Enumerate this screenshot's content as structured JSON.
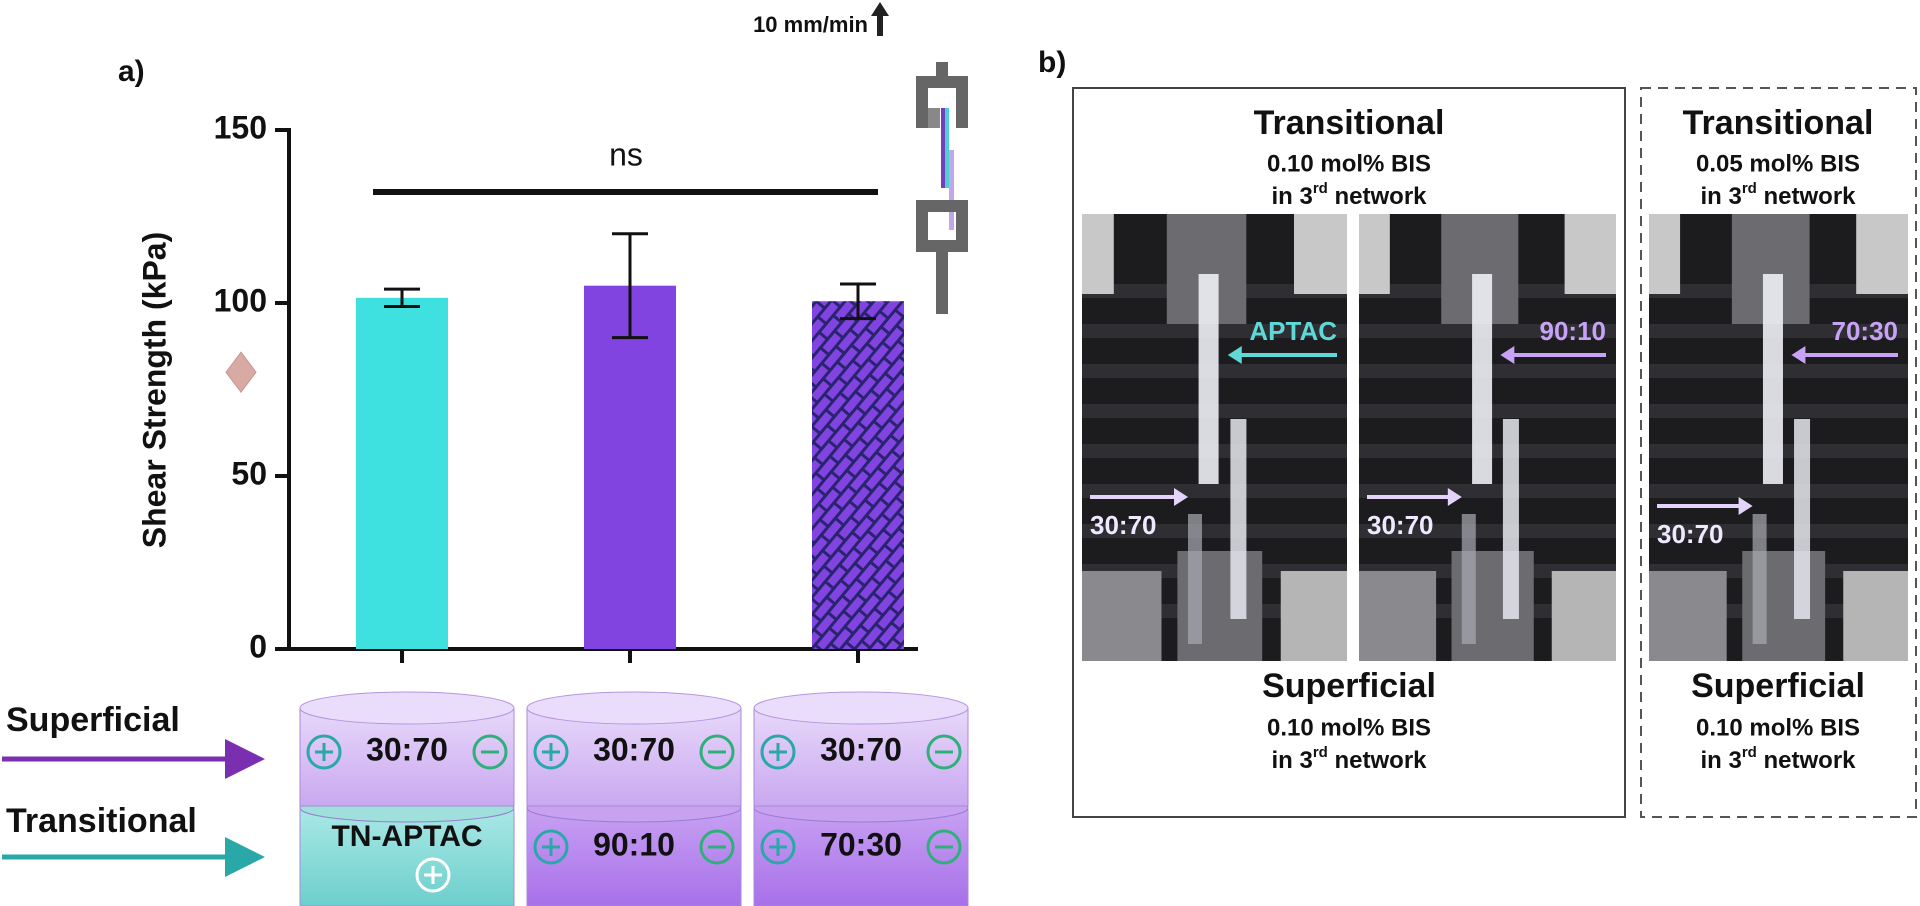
{
  "chart_data": {
    "type": "bar",
    "panel_label": "a)",
    "y_label": "Shear Strength (kPa)",
    "categories": [
      null,
      null,
      null
    ],
    "series": [
      {
        "values": [
          101.5,
          105,
          100.5
        ],
        "errors": [
          2.5,
          15,
          5
        ],
        "colors": [
          "#3ee0e0",
          "#8144e0",
          "#8144e0"
        ],
        "hatch": [
          false,
          false,
          true
        ]
      }
    ],
    "ylim": [
      0,
      150
    ],
    "yticks": [
      0,
      50,
      100,
      150
    ],
    "reference_value": 80,
    "annotation": "ns",
    "inset_label": "10 mm/min",
    "layer_labels": [
      "Superficial",
      "Transitional"
    ],
    "cylinders": [
      {
        "top": "30:70",
        "bottom": "TN-APTAC"
      },
      {
        "top": "30:70",
        "bottom": "90:10"
      },
      {
        "top": "30:70",
        "bottom": "70:30"
      }
    ]
  },
  "panel_b": {
    "label": "b)",
    "groups": [
      {
        "top_title": "Transitional",
        "top_line": "0.10 mol% BIS",
        "bottom_title": "Superficial",
        "bottom_line": "0.10 mol% BIS",
        "network": [
          "in 3",
          "rd",
          " network"
        ]
      },
      {
        "top_title": "Transitional",
        "top_line": "0.05 mol% BIS",
        "bottom_title": "Superficial",
        "bottom_line": "0.10 mol% BIS",
        "network": [
          "in 3",
          "rd",
          " network"
        ]
      }
    ],
    "photos": [
      {
        "upper": "APTAC",
        "lower": "30:70"
      },
      {
        "upper": "90:10",
        "lower": "30:70"
      },
      {
        "upper": "70:30",
        "lower": "30:70"
      }
    ]
  }
}
